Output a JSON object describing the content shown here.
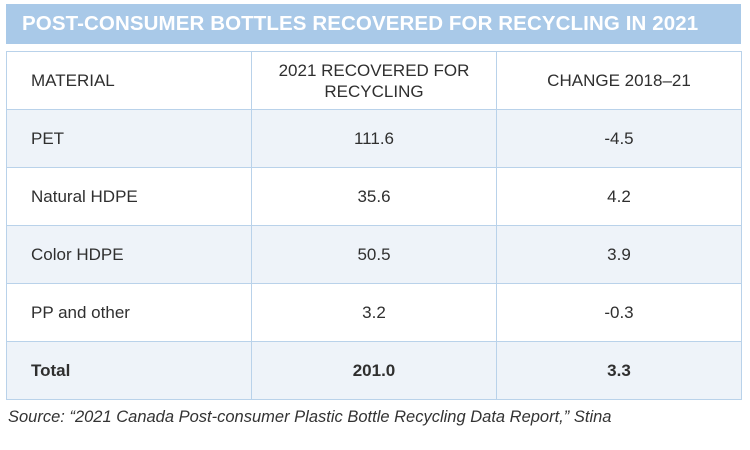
{
  "title": "POST-CONSUMER BOTTLES RECOVERED FOR RECYCLING IN 2021",
  "source": "Source: “2021 Canada Post-consumer Plastic Bottle Recycling Data Report,” Stina",
  "chart_data": {
    "type": "table",
    "columns": [
      "MATERIAL",
      "2021 RECOVERED FOR RECYCLING",
      "CHANGE 2018–21"
    ],
    "rows": [
      [
        "PET",
        "111.6",
        "-4.5"
      ],
      [
        "Natural HDPE",
        "35.6",
        "4.2"
      ],
      [
        "Color HDPE",
        "50.5",
        "3.9"
      ],
      [
        "PP and other",
        "3.2",
        "-0.3"
      ]
    ],
    "total": [
      "Total",
      "201.0",
      "3.3"
    ]
  },
  "colors": {
    "title_background": "#a9c9e8",
    "shaded_row": "#eef3f9",
    "border": "#b9d2ea"
  }
}
